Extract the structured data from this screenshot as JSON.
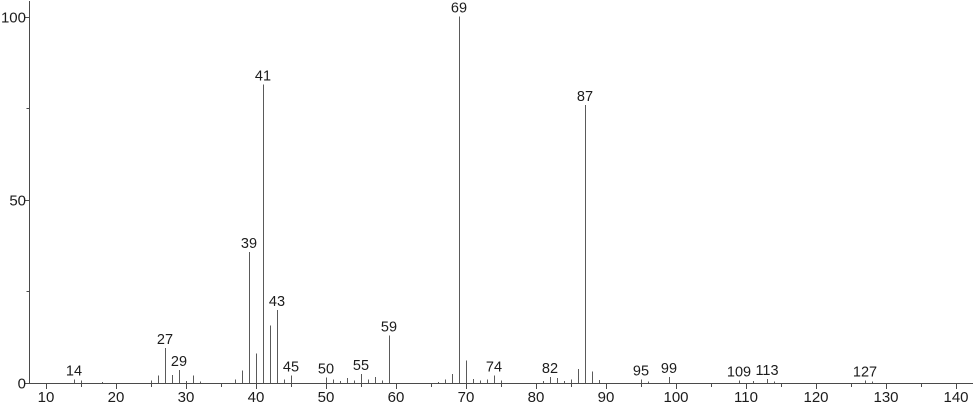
{
  "chart_data": {
    "type": "bar",
    "subtype": "mass-spectrum-stick-plot",
    "title": "",
    "xlabel": "",
    "ylabel": "",
    "xlim": [
      7.6,
      143
    ],
    "ylim": [
      0,
      104
    ],
    "grid": false,
    "legend": null,
    "x_ticks_major": [
      10,
      20,
      30,
      40,
      50,
      60,
      70,
      80,
      90,
      100,
      110,
      120,
      130,
      140
    ],
    "x_tick_labels": [
      "10",
      "20",
      "30",
      "40",
      "50",
      "60",
      "70",
      "80",
      "90",
      "100",
      "110",
      "120",
      "130",
      "140"
    ],
    "x_ticks_minor": [
      15,
      25,
      35,
      45,
      55,
      65,
      75,
      85,
      95,
      105,
      115,
      125,
      135,
      145
    ],
    "y_ticks_major": [
      0,
      50,
      100
    ],
    "y_tick_labels": [
      "0",
      "50",
      "100"
    ],
    "y_ticks_minor": [
      25,
      75
    ],
    "peaks": [
      [
        14,
        0.9
      ],
      [
        15,
        0.7
      ],
      [
        18,
        0.3
      ],
      [
        25,
        0.7
      ],
      [
        26,
        2.0
      ],
      [
        27,
        9.6
      ],
      [
        28,
        2.2
      ],
      [
        29,
        3.5
      ],
      [
        30,
        0.6
      ],
      [
        31,
        2.1
      ],
      [
        32,
        0.4
      ],
      [
        37,
        0.9
      ],
      [
        38,
        3.4
      ],
      [
        39,
        35.8
      ],
      [
        40,
        8.0
      ],
      [
        41,
        81.5
      ],
      [
        42,
        15.7
      ],
      [
        43,
        19.9
      ],
      [
        44,
        0.9
      ],
      [
        45,
        2.1
      ],
      [
        50,
        1.5
      ],
      [
        51,
        0.9
      ],
      [
        52,
        0.6
      ],
      [
        53,
        1.4
      ],
      [
        54,
        0.7
      ],
      [
        55,
        2.5
      ],
      [
        56,
        0.9
      ],
      [
        57,
        1.6
      ],
      [
        58,
        0.7
      ],
      [
        59,
        12.9
      ],
      [
        66,
        0.3
      ],
      [
        67,
        0.9
      ],
      [
        68,
        2.5
      ],
      [
        69,
        100
      ],
      [
        70,
        6.1
      ],
      [
        71,
        1.1
      ],
      [
        72,
        0.7
      ],
      [
        73,
        0.9
      ],
      [
        74,
        2.1
      ],
      [
        75,
        0.7
      ],
      [
        81,
        0.5
      ],
      [
        82,
        1.6
      ],
      [
        83,
        1.3
      ],
      [
        84,
        0.6
      ],
      [
        85,
        0.9
      ],
      [
        86,
        3.8
      ],
      [
        87,
        75.8
      ],
      [
        88,
        3.2
      ],
      [
        89,
        0.8
      ],
      [
        95,
        0.9
      ],
      [
        96,
        0.4
      ],
      [
        99,
        1.6
      ],
      [
        109,
        0.7
      ],
      [
        111,
        0.5
      ],
      [
        113,
        1.1
      ],
      [
        114,
        0.4
      ],
      [
        127,
        0.7
      ],
      [
        128,
        0.4
      ]
    ],
    "labeled_peaks": [
      14,
      27,
      29,
      39,
      41,
      43,
      45,
      50,
      55,
      59,
      69,
      74,
      82,
      87,
      95,
      99,
      109,
      113,
      127
    ]
  },
  "colors": {
    "background": "#ffffff",
    "peak_line": "#5a5a5a",
    "axis_line": "#4a4a4a",
    "text": "#1c1c1c"
  }
}
